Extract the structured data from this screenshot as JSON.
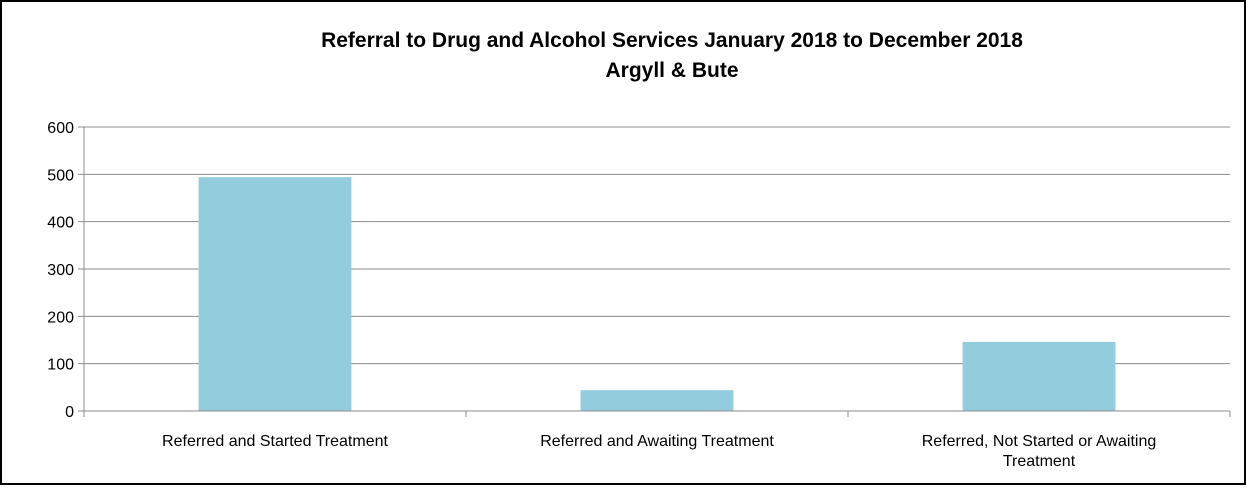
{
  "chart_data": {
    "type": "bar",
    "title": "Referral to Drug and Alcohol Services January 2018 to December 2018",
    "subtitle": "Argyll & Bute",
    "categories": [
      "Referred and Started Treatment",
      "Referred and Awaiting Treatment",
      "Referred, Not Started or Awaiting Treatment"
    ],
    "category_lines": [
      [
        "Referred and Started Treatment"
      ],
      [
        "Referred and Awaiting Treatment"
      ],
      [
        "Referred, Not Started or Awaiting",
        "Treatment"
      ]
    ],
    "values": [
      494,
      44,
      146
    ],
    "ylim": [
      0,
      600
    ],
    "yticks": [
      0,
      100,
      200,
      300,
      400,
      500,
      600
    ],
    "grid": true,
    "legend": "none",
    "bar_color": "#93CDDD"
  }
}
